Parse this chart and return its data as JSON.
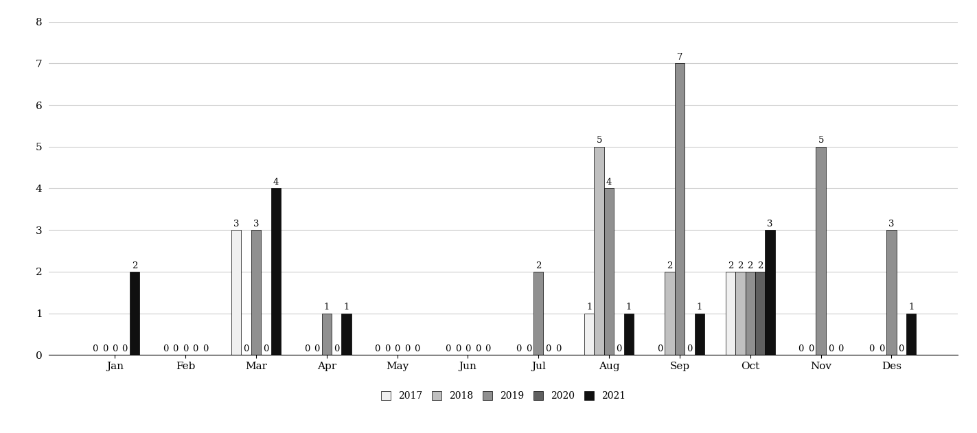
{
  "months": [
    "Jan",
    "Feb",
    "Mar",
    "Apr",
    "May",
    "Jun",
    "Jul",
    "Aug",
    "Sep",
    "Oct",
    "Nov",
    "Des"
  ],
  "years": [
    "2017",
    "2018",
    "2019",
    "2020",
    "2021"
  ],
  "colors": {
    "2017": "#f0f0f0",
    "2018": "#c0c0c0",
    "2019": "#909090",
    "2020": "#606060",
    "2021": "#101010"
  },
  "data": {
    "2017": [
      0,
      0,
      3,
      0,
      0,
      0,
      0,
      1,
      0,
      2,
      0,
      0
    ],
    "2018": [
      0,
      0,
      0,
      0,
      0,
      0,
      0,
      5,
      2,
      2,
      0,
      0
    ],
    "2019": [
      0,
      0,
      3,
      1,
      0,
      0,
      2,
      4,
      7,
      2,
      5,
      3
    ],
    "2020": [
      0,
      0,
      0,
      0,
      0,
      0,
      0,
      0,
      0,
      2,
      0,
      0
    ],
    "2021": [
      2,
      0,
      4,
      1,
      0,
      0,
      0,
      1,
      1,
      3,
      0,
      1
    ]
  },
  "ylim": [
    0,
    8
  ],
  "yticks": [
    0,
    1,
    2,
    3,
    4,
    5,
    6,
    7,
    8
  ],
  "bar_width": 0.14,
  "background_color": "#ffffff",
  "grid_color": "#cccccc",
  "label_fontsize": 9.5,
  "tick_fontsize": 11,
  "legend_fontsize": 10
}
